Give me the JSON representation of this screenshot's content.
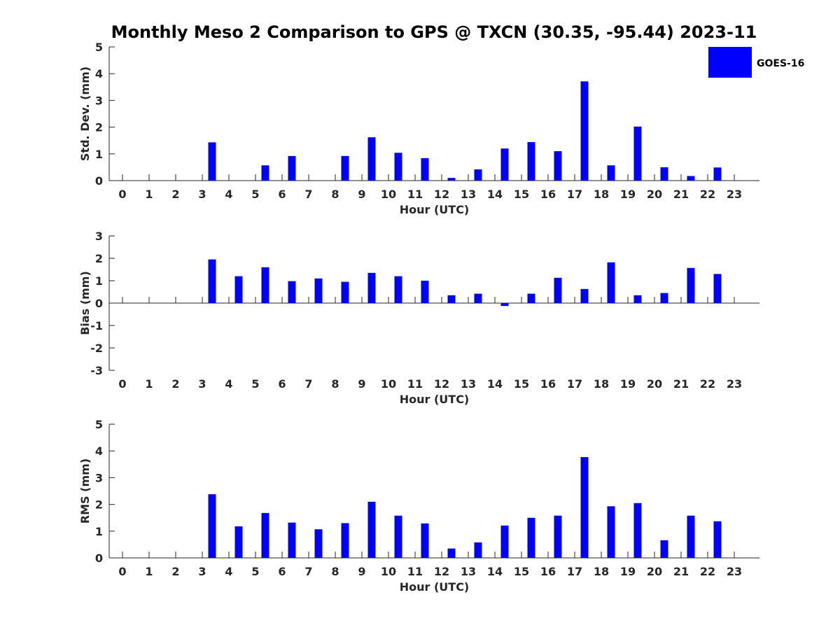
{
  "title": "Monthly Meso 2 Comparison to GPS @ TXCN (30.35, -95.44) 2023-11",
  "legend": {
    "label": "GOES-16",
    "color": "#0000ff",
    "placement": "top-right"
  },
  "chart_data": [
    {
      "type": "bar",
      "xlabel": "Hour (UTC)",
      "ylabel": "Std. Dev. (mm)",
      "ylim": [
        0,
        5
      ],
      "yticks": [
        "0",
        "1",
        "2",
        "3",
        "4",
        "5"
      ],
      "categories": [
        "0",
        "1",
        "2",
        "3",
        "4",
        "5",
        "6",
        "7",
        "8",
        "9",
        "10",
        "11",
        "12",
        "13",
        "14",
        "15",
        "16",
        "17",
        "18",
        "19",
        "20",
        "21",
        "22",
        "23"
      ],
      "series": [
        {
          "name": "GOES-16",
          "values": [
            null,
            null,
            null,
            1.43,
            null,
            0.57,
            0.92,
            null,
            0.92,
            1.62,
            1.04,
            0.84,
            0.1,
            0.42,
            1.2,
            1.44,
            1.1,
            3.71,
            0.57,
            2.02,
            0.5,
            0.17,
            0.49,
            null
          ]
        }
      ]
    },
    {
      "type": "bar",
      "xlabel": "Hour (UTC)",
      "ylabel": "Bias (mm)",
      "ylim": [
        -3,
        3
      ],
      "yticks": [
        "-3",
        "-2",
        "-1",
        "0",
        "1",
        "2",
        "3"
      ],
      "categories": [
        "0",
        "1",
        "2",
        "3",
        "4",
        "5",
        "6",
        "7",
        "8",
        "9",
        "10",
        "11",
        "12",
        "13",
        "14",
        "15",
        "16",
        "17",
        "18",
        "19",
        "20",
        "21",
        "22",
        "23"
      ],
      "series": [
        {
          "name": "GOES-16",
          "values": [
            null,
            null,
            null,
            1.95,
            1.2,
            1.6,
            0.98,
            1.1,
            0.95,
            1.35,
            1.2,
            1.0,
            0.35,
            0.42,
            -0.13,
            0.42,
            1.13,
            0.63,
            1.82,
            0.35,
            0.45,
            1.57,
            1.3,
            null
          ]
        }
      ]
    },
    {
      "type": "bar",
      "xlabel": "Hour (UTC)",
      "ylabel": "RMS (mm)",
      "ylim": [
        0,
        5
      ],
      "yticks": [
        "0",
        "1",
        "2",
        "3",
        "4",
        "5"
      ],
      "categories": [
        "0",
        "1",
        "2",
        "3",
        "4",
        "5",
        "6",
        "7",
        "8",
        "9",
        "10",
        "11",
        "12",
        "13",
        "14",
        "15",
        "16",
        "17",
        "18",
        "19",
        "20",
        "21",
        "22",
        "23"
      ],
      "series": [
        {
          "name": "GOES-16",
          "values": [
            null,
            null,
            null,
            2.38,
            1.18,
            1.68,
            1.32,
            1.07,
            1.3,
            2.1,
            1.58,
            1.29,
            0.35,
            0.58,
            1.21,
            1.5,
            1.58,
            3.77,
            1.93,
            2.05,
            0.66,
            1.58,
            1.37,
            null
          ]
        }
      ]
    }
  ]
}
